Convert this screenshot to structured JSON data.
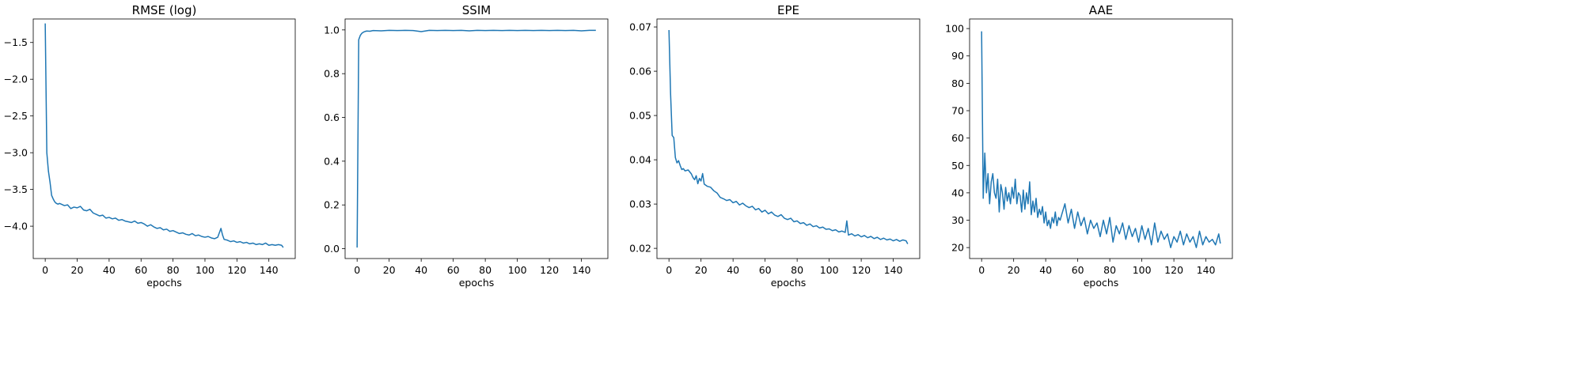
{
  "line_color": "#1f77b4",
  "chart_data": [
    {
      "type": "line",
      "title": "RMSE (log)",
      "xlabel": "epochs",
      "xlim": [
        -7.5,
        156.5
      ],
      "ylim": [
        -4.44,
        -1.18
      ],
      "xticks": [
        0,
        20,
        40,
        60,
        80,
        100,
        120,
        140
      ],
      "yticks": [
        -4.0,
        -3.5,
        -3.0,
        -2.5,
        -2.0,
        -1.5
      ],
      "ytick_labels": [
        "−4.0",
        "−3.5",
        "−3.0",
        "−2.5",
        "−2.0",
        "−1.5"
      ],
      "series": [
        {
          "x": [
            0,
            1,
            2,
            3,
            4,
            5,
            6,
            7,
            8,
            9,
            10,
            12,
            14,
            16,
            18,
            20,
            22,
            24,
            26,
            28,
            30,
            32,
            34,
            36,
            38,
            40,
            42,
            44,
            46,
            48,
            50,
            52,
            54,
            56,
            58,
            60,
            62,
            64,
            66,
            68,
            70,
            72,
            74,
            76,
            78,
            80,
            82,
            84,
            86,
            88,
            90,
            92,
            94,
            96,
            98,
            100,
            102,
            104,
            106,
            108,
            110,
            111,
            112,
            114,
            116,
            118,
            120,
            122,
            124,
            126,
            128,
            130,
            132,
            134,
            136,
            138,
            140,
            142,
            144,
            146,
            148,
            149
          ],
          "y": [
            -1.24,
            -3.0,
            -3.25,
            -3.4,
            -3.58,
            -3.63,
            -3.67,
            -3.69,
            -3.7,
            -3.69,
            -3.7,
            -3.72,
            -3.71,
            -3.76,
            -3.74,
            -3.75,
            -3.73,
            -3.78,
            -3.79,
            -3.77,
            -3.82,
            -3.84,
            -3.86,
            -3.85,
            -3.89,
            -3.88,
            -3.9,
            -3.89,
            -3.92,
            -3.91,
            -3.93,
            -3.94,
            -3.95,
            -3.93,
            -3.96,
            -3.95,
            -3.97,
            -4.0,
            -3.98,
            -4.01,
            -4.03,
            -4.02,
            -4.05,
            -4.04,
            -4.07,
            -4.06,
            -4.08,
            -4.1,
            -4.09,
            -4.11,
            -4.12,
            -4.1,
            -4.13,
            -4.12,
            -4.14,
            -4.15,
            -4.14,
            -4.16,
            -4.17,
            -4.15,
            -4.03,
            -4.12,
            -4.18,
            -4.19,
            -4.21,
            -4.2,
            -4.22,
            -4.21,
            -4.23,
            -4.22,
            -4.24,
            -4.23,
            -4.25,
            -4.24,
            -4.25,
            -4.23,
            -4.26,
            -4.25,
            -4.26,
            -4.25,
            -4.26,
            -4.29
          ]
        }
      ]
    },
    {
      "type": "line",
      "title": "SSIM",
      "xlabel": "epochs",
      "xlim": [
        -7.5,
        156.5
      ],
      "ylim": [
        -0.045,
        1.05
      ],
      "xticks": [
        0,
        20,
        40,
        60,
        80,
        100,
        120,
        140
      ],
      "yticks": [
        0.0,
        0.2,
        0.4,
        0.6,
        0.8,
        1.0
      ],
      "ytick_labels": [
        "0.0",
        "0.2",
        "0.4",
        "0.6",
        "0.8",
        "1.0"
      ],
      "series": [
        {
          "x": [
            0,
            1,
            2,
            3,
            4,
            5,
            6,
            8,
            10,
            15,
            20,
            25,
            30,
            35,
            40,
            45,
            50,
            55,
            60,
            65,
            70,
            75,
            80,
            85,
            90,
            95,
            100,
            105,
            110,
            115,
            120,
            125,
            130,
            135,
            140,
            145,
            149
          ],
          "y": [
            0.005,
            0.955,
            0.975,
            0.985,
            0.99,
            0.993,
            0.995,
            0.994,
            0.997,
            0.996,
            0.998,
            0.997,
            0.998,
            0.997,
            0.992,
            0.998,
            0.997,
            0.998,
            0.997,
            0.998,
            0.996,
            0.998,
            0.997,
            0.998,
            0.997,
            0.998,
            0.997,
            0.998,
            0.997,
            0.998,
            0.997,
            0.998,
            0.997,
            0.998,
            0.996,
            0.998,
            0.998
          ]
        }
      ]
    },
    {
      "type": "line",
      "title": "EPE",
      "xlabel": "epochs",
      "xlim": [
        -7.5,
        156.5
      ],
      "ylim": [
        0.0177,
        0.0718
      ],
      "xticks": [
        0,
        20,
        40,
        60,
        80,
        100,
        120,
        140
      ],
      "yticks": [
        0.02,
        0.03,
        0.04,
        0.05,
        0.06,
        0.07
      ],
      "ytick_labels": [
        "0.02",
        "0.03",
        "0.04",
        "0.05",
        "0.06",
        "0.07"
      ],
      "series": [
        {
          "x": [
            0,
            1,
            2,
            3,
            4,
            5,
            6,
            7,
            8,
            9,
            10,
            12,
            14,
            15,
            16,
            17,
            18,
            19,
            20,
            21,
            22,
            24,
            26,
            28,
            30,
            32,
            34,
            36,
            38,
            40,
            42,
            44,
            46,
            48,
            50,
            52,
            54,
            56,
            58,
            60,
            62,
            64,
            66,
            68,
            70,
            72,
            74,
            76,
            78,
            80,
            82,
            84,
            86,
            88,
            90,
            92,
            94,
            96,
            98,
            100,
            102,
            104,
            106,
            108,
            110,
            111,
            112,
            114,
            116,
            118,
            120,
            122,
            124,
            126,
            128,
            130,
            132,
            134,
            136,
            138,
            140,
            142,
            144,
            146,
            148,
            149
          ],
          "y": [
            0.0693,
            0.055,
            0.0455,
            0.045,
            0.0405,
            0.0393,
            0.0398,
            0.0387,
            0.0378,
            0.038,
            0.0375,
            0.0377,
            0.0368,
            0.036,
            0.0355,
            0.0364,
            0.0346,
            0.0358,
            0.0352,
            0.0369,
            0.0345,
            0.034,
            0.0338,
            0.033,
            0.0325,
            0.0315,
            0.0312,
            0.0308,
            0.031,
            0.0303,
            0.0306,
            0.0298,
            0.0302,
            0.0296,
            0.0292,
            0.0295,
            0.0287,
            0.029,
            0.0282,
            0.0286,
            0.0278,
            0.0282,
            0.0275,
            0.0272,
            0.0276,
            0.0268,
            0.0265,
            0.0268,
            0.026,
            0.0262,
            0.0256,
            0.0258,
            0.0252,
            0.0255,
            0.0249,
            0.0251,
            0.0246,
            0.0248,
            0.0243,
            0.0244,
            0.024,
            0.0242,
            0.0237,
            0.0239,
            0.0236,
            0.0262,
            0.023,
            0.0233,
            0.0228,
            0.0231,
            0.0226,
            0.0229,
            0.0224,
            0.0227,
            0.0222,
            0.0225,
            0.022,
            0.0223,
            0.0219,
            0.0221,
            0.0217,
            0.022,
            0.0216,
            0.0219,
            0.0217,
            0.021
          ]
        }
      ]
    },
    {
      "type": "line",
      "title": "AAE",
      "xlabel": "epochs",
      "xlim": [
        -7.5,
        156.5
      ],
      "ylim": [
        16.0,
        103.5
      ],
      "xticks": [
        0,
        20,
        40,
        60,
        80,
        100,
        120,
        140
      ],
      "yticks": [
        20,
        30,
        40,
        50,
        60,
        70,
        80,
        90,
        100
      ],
      "ytick_labels": [
        "20",
        "30",
        "40",
        "50",
        "60",
        "70",
        "80",
        "90",
        "100"
      ],
      "series": [
        {
          "x": [
            0,
            1,
            2,
            3,
            4,
            5,
            6,
            7,
            8,
            9,
            10,
            11,
            12,
            13,
            14,
            15,
            16,
            17,
            18,
            19,
            20,
            21,
            22,
            23,
            24,
            25,
            26,
            27,
            28,
            29,
            30,
            31,
            32,
            33,
            34,
            35,
            36,
            37,
            38,
            39,
            40,
            41,
            42,
            43,
            44,
            45,
            46,
            47,
            48,
            49,
            50,
            52,
            54,
            56,
            58,
            60,
            62,
            64,
            66,
            68,
            70,
            72,
            74,
            76,
            78,
            80,
            82,
            84,
            86,
            88,
            90,
            92,
            94,
            96,
            98,
            100,
            102,
            104,
            106,
            108,
            110,
            112,
            114,
            116,
            118,
            120,
            122,
            124,
            126,
            128,
            130,
            132,
            134,
            136,
            138,
            140,
            142,
            144,
            146,
            148,
            149
          ],
          "y": [
            99,
            38,
            54.5,
            40,
            47,
            36,
            44,
            47,
            40,
            38,
            45,
            33,
            43,
            40,
            34,
            42,
            37,
            40,
            36,
            42,
            38,
            45,
            36,
            40,
            39,
            33,
            41,
            34,
            40,
            36,
            44,
            32,
            37,
            33,
            38,
            31,
            34,
            32,
            35,
            29,
            33,
            28,
            30,
            27,
            31,
            29,
            33,
            28,
            31,
            30,
            32,
            36,
            29,
            34,
            27,
            33,
            28,
            31,
            25,
            30,
            27,
            29,
            24,
            30,
            25,
            31,
            22,
            28,
            25,
            29,
            23,
            28,
            24,
            27,
            22,
            28,
            23,
            27,
            21,
            29,
            22,
            26,
            23,
            25,
            20,
            24,
            22,
            26,
            21,
            25,
            22,
            24,
            20,
            26,
            21,
            24,
            22,
            23,
            21,
            25,
            21.5
          ]
        }
      ]
    }
  ]
}
